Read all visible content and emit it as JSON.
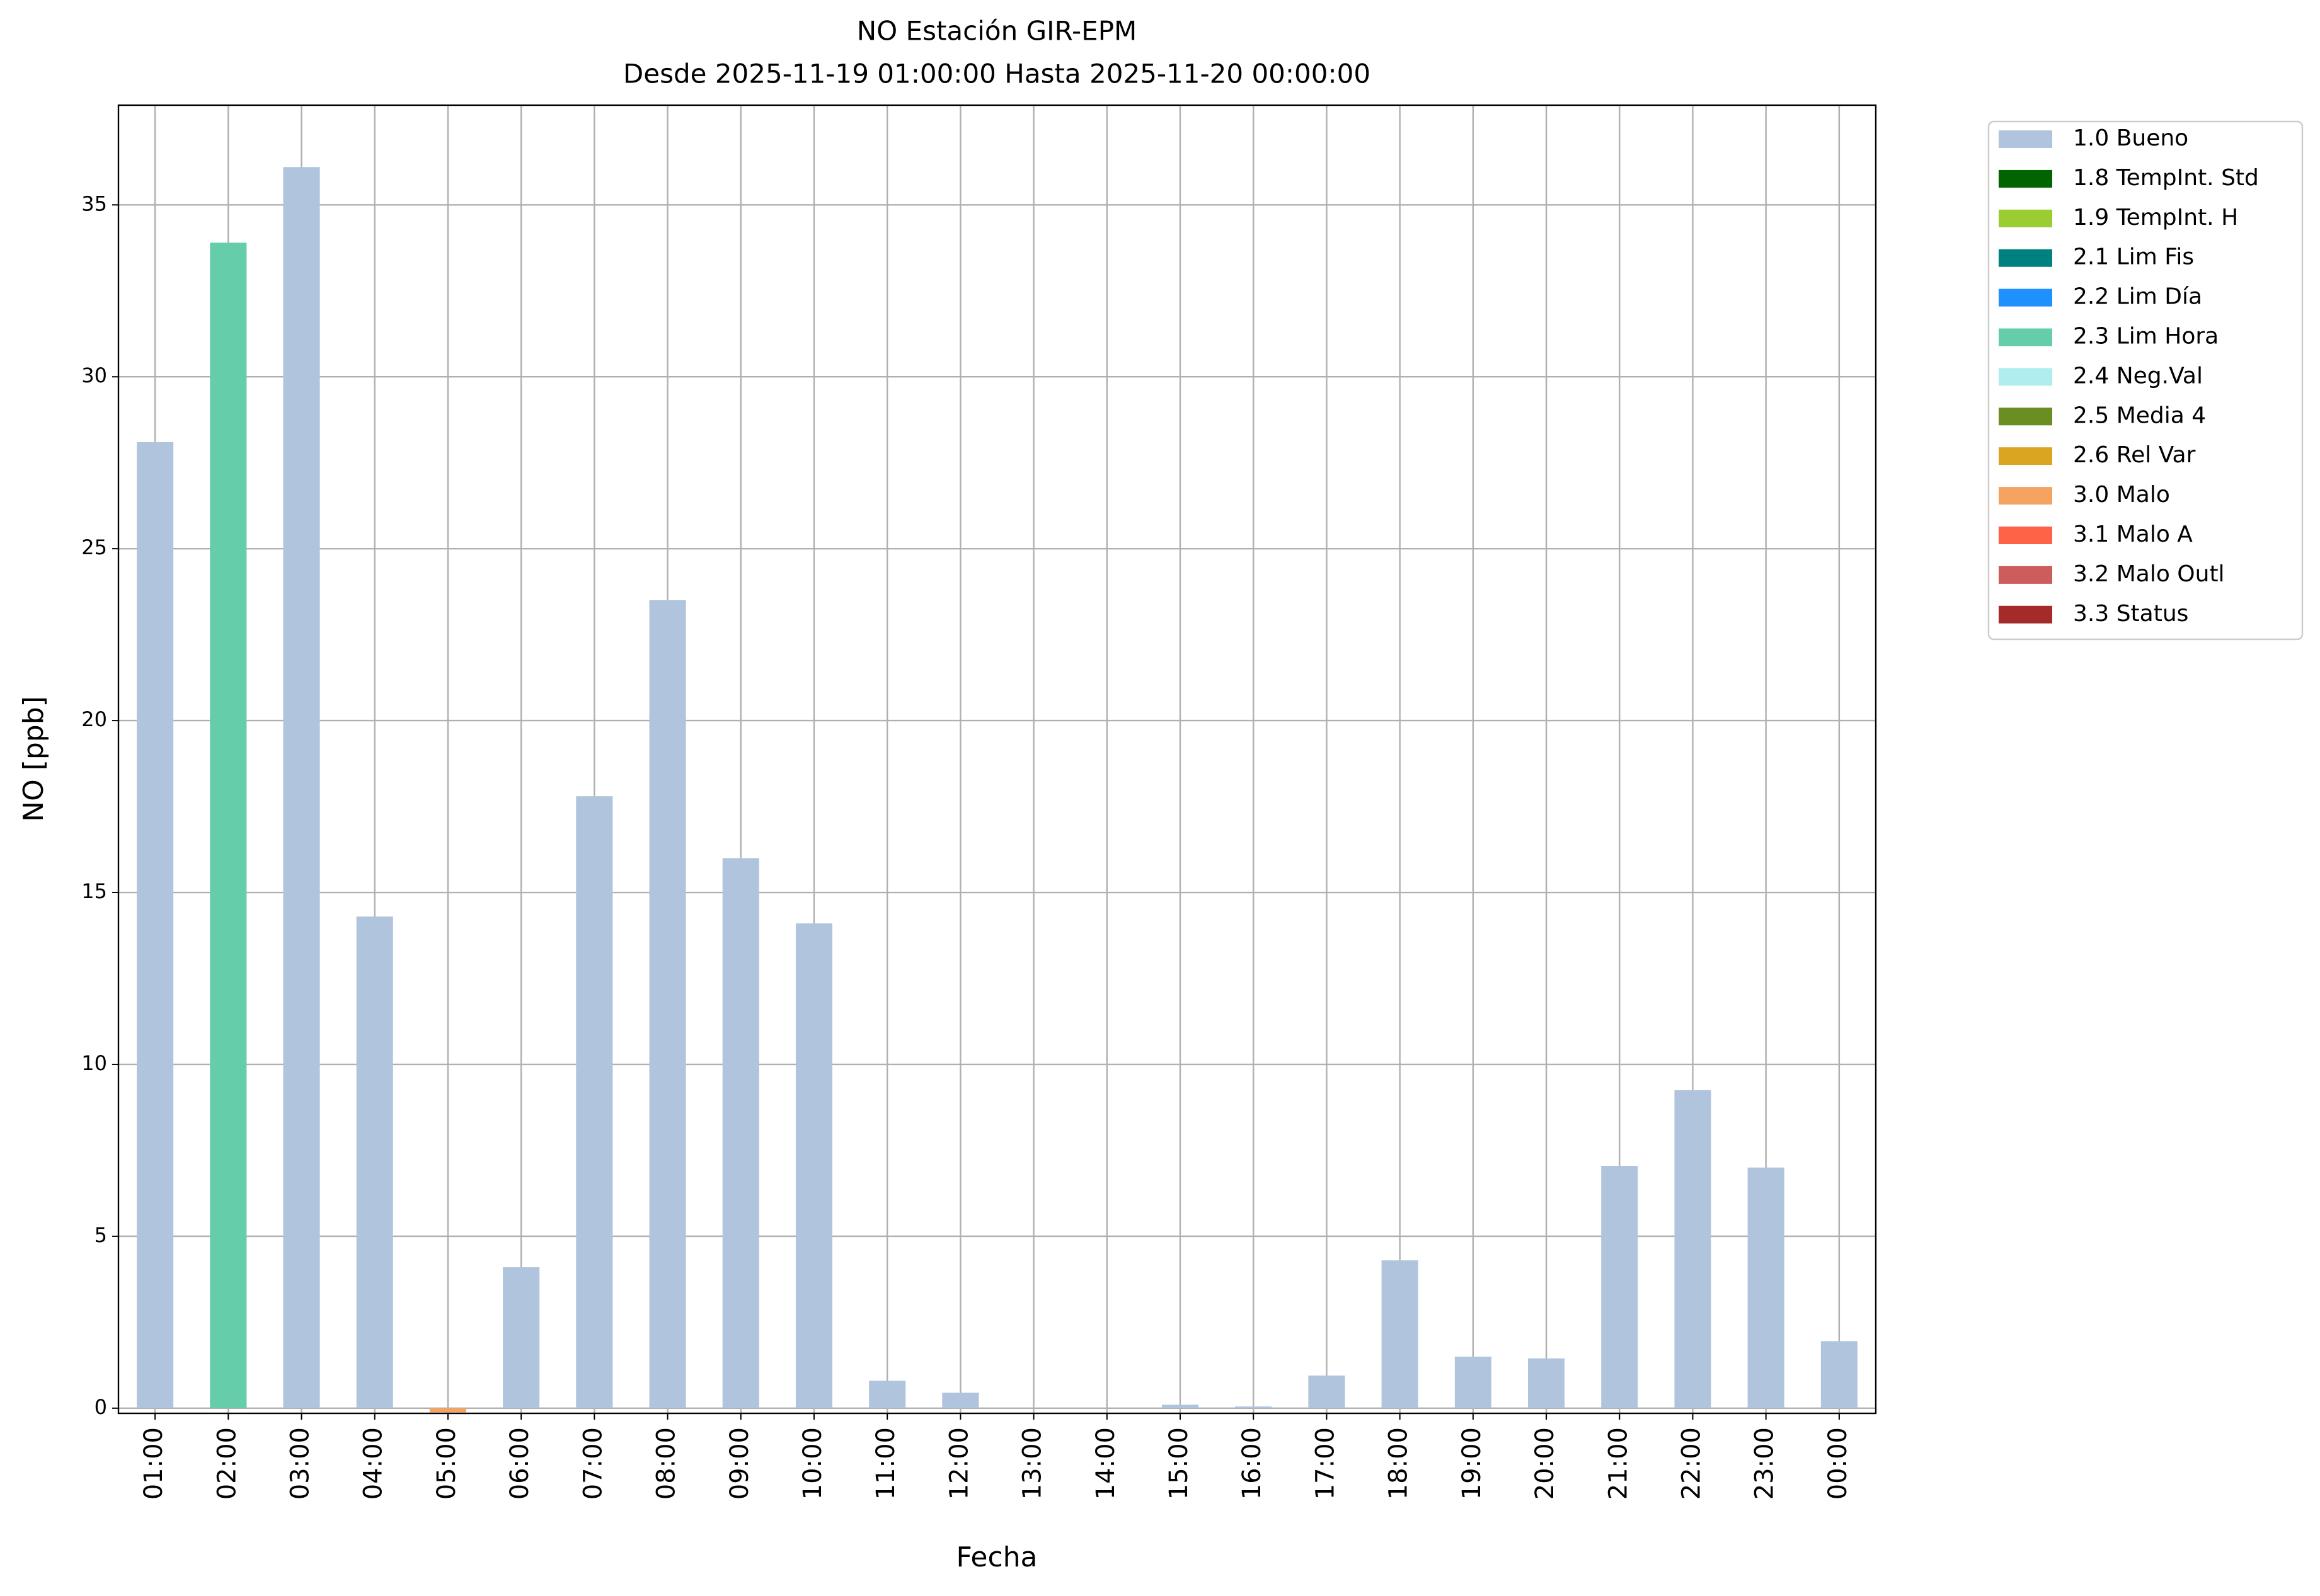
{
  "chart_data": {
    "type": "bar",
    "title": "NO Estación GIR-EPM",
    "subtitle": "Desde 2025-11-19 01:00:00 Hasta 2025-11-20 00:00:00",
    "x_label": "Fecha",
    "y_label": "NO [ppb]",
    "categories": [
      "01:00",
      "02:00",
      "03:00",
      "04:00",
      "05:00",
      "06:00",
      "07:00",
      "08:00",
      "09:00",
      "10:00",
      "11:00",
      "12:00",
      "13:00",
      "14:00",
      "15:00",
      "16:00",
      "17:00",
      "18:00",
      "19:00",
      "20:00",
      "21:00",
      "22:00",
      "23:00",
      "00:00"
    ],
    "series": [
      {
        "name": "1.0 Bueno",
        "color": "#b0c4de",
        "values": [
          28.1,
          null,
          36.1,
          14.3,
          null,
          4.1,
          17.8,
          23.5,
          16.0,
          14.1,
          0.8,
          0.45,
          0,
          0,
          0.1,
          0.05,
          0.95,
          4.3,
          1.5,
          1.45,
          7.05,
          9.25,
          7.0,
          1.95
        ]
      },
      {
        "name": "1.8 TempInt. Std",
        "color": "#006400",
        "values": [
          null,
          null,
          null,
          null,
          null,
          null,
          null,
          null,
          null,
          null,
          null,
          null,
          null,
          null,
          null,
          null,
          null,
          null,
          null,
          null,
          null,
          null,
          null,
          null
        ]
      },
      {
        "name": "1.9 TempInt. H",
        "color": "#9acd32",
        "values": [
          null,
          null,
          null,
          null,
          null,
          null,
          null,
          null,
          null,
          null,
          null,
          null,
          null,
          null,
          null,
          null,
          null,
          null,
          null,
          null,
          null,
          null,
          null,
          null
        ]
      },
      {
        "name": "2.1 Lim Fis",
        "color": "#008080",
        "values": [
          null,
          null,
          null,
          null,
          null,
          null,
          null,
          null,
          null,
          null,
          null,
          null,
          null,
          null,
          null,
          null,
          null,
          null,
          null,
          null,
          null,
          null,
          null,
          null
        ]
      },
      {
        "name": "2.2 Lim Día",
        "color": "#1e90ff",
        "values": [
          null,
          null,
          null,
          null,
          null,
          null,
          null,
          null,
          null,
          null,
          null,
          null,
          null,
          null,
          null,
          null,
          null,
          null,
          null,
          null,
          null,
          null,
          null,
          null
        ]
      },
      {
        "name": "2.3 Lim Hora",
        "color": "#66cdaa",
        "values": [
          null,
          33.9,
          null,
          null,
          null,
          null,
          null,
          null,
          null,
          null,
          null,
          null,
          null,
          null,
          null,
          null,
          null,
          null,
          null,
          null,
          null,
          null,
          null,
          null
        ]
      },
      {
        "name": "2.4 Neg.Val",
        "color": "#afeeee",
        "values": [
          null,
          null,
          null,
          null,
          null,
          null,
          null,
          null,
          null,
          null,
          null,
          null,
          null,
          null,
          null,
          null,
          null,
          null,
          null,
          null,
          null,
          null,
          null,
          null
        ]
      },
      {
        "name": "2.5 Media 4",
        "color": "#6b8e23",
        "values": [
          null,
          null,
          null,
          null,
          null,
          null,
          null,
          null,
          null,
          null,
          null,
          null,
          null,
          null,
          null,
          null,
          null,
          null,
          null,
          null,
          null,
          null,
          null,
          null
        ]
      },
      {
        "name": "2.6 Rel Var",
        "color": "#daa520",
        "values": [
          null,
          null,
          null,
          null,
          null,
          null,
          null,
          null,
          null,
          null,
          null,
          null,
          null,
          null,
          null,
          null,
          null,
          null,
          null,
          null,
          null,
          null,
          null,
          null
        ]
      },
      {
        "name": "3.0 Malo",
        "color": "#f4a460",
        "values": [
          null,
          null,
          null,
          null,
          -0.12,
          null,
          null,
          null,
          null,
          null,
          null,
          null,
          null,
          null,
          null,
          null,
          null,
          null,
          null,
          null,
          null,
          null,
          null,
          null
        ]
      },
      {
        "name": "3.1 Malo A",
        "color": "#ff6347",
        "values": [
          null,
          null,
          null,
          null,
          null,
          null,
          null,
          null,
          null,
          null,
          null,
          null,
          null,
          null,
          null,
          null,
          null,
          null,
          null,
          null,
          null,
          null,
          null,
          null
        ]
      },
      {
        "name": "3.2 Malo Outl",
        "color": "#cd5c5c",
        "values": [
          null,
          null,
          null,
          null,
          null,
          null,
          null,
          null,
          null,
          null,
          null,
          null,
          null,
          null,
          null,
          null,
          null,
          null,
          null,
          null,
          null,
          null,
          null,
          null
        ]
      },
      {
        "name": "3.3 Status",
        "color": "#a52a2a",
        "values": [
          null,
          null,
          null,
          null,
          null,
          null,
          null,
          null,
          null,
          null,
          null,
          null,
          null,
          null,
          null,
          null,
          null,
          null,
          null,
          null,
          null,
          null,
          null,
          null
        ]
      }
    ],
    "ylim": [
      -0.15,
      37.9
    ],
    "yticks": [
      0,
      5,
      10,
      15,
      20,
      25,
      30,
      35
    ],
    "grid": true,
    "legend": "outside-right"
  }
}
